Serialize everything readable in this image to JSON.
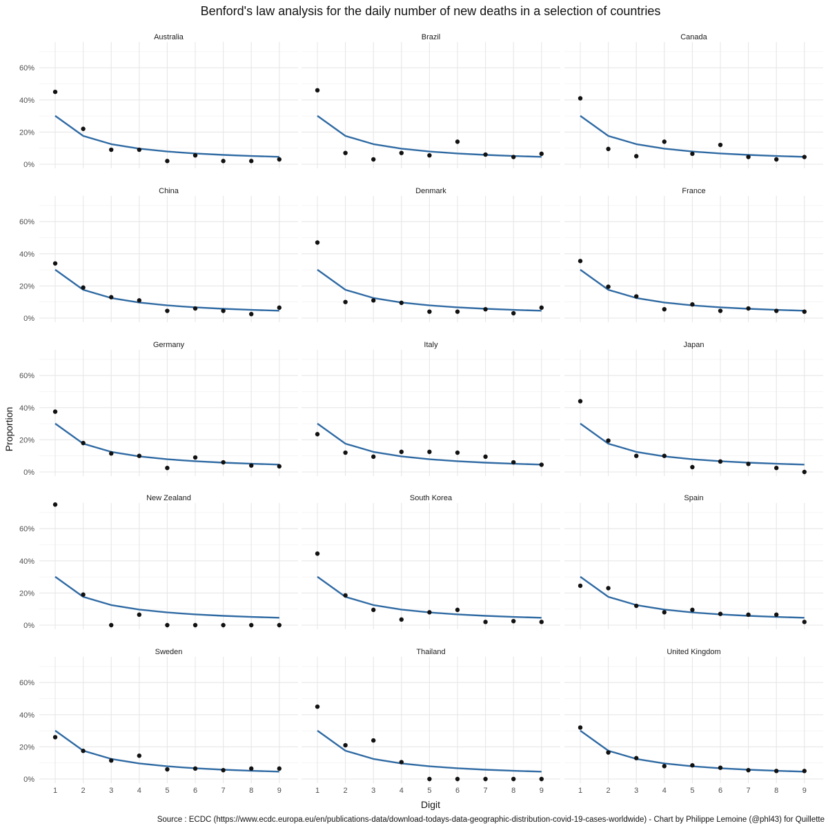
{
  "chart_data": {
    "type": "scatter",
    "title": "Benford's law analysis for the daily number of new deaths in a selection of countries",
    "xlabel": "Digit",
    "ylabel": "Proportion",
    "caption": "Source : ECDC (https://www.ecdc.europa.eu/en/publications-data/download-todays-data-geographic-distribution-covid-19-cases-worldwide) - Chart by Philippe Lemoine (@phl43) for Quillette",
    "x_ticks": [
      "1",
      "2",
      "3",
      "4",
      "5",
      "6",
      "7",
      "8",
      "9"
    ],
    "y_ticks": [
      "0%",
      "20%",
      "40%",
      "60%"
    ],
    "ylim": [
      0,
      0.76
    ],
    "grid": true,
    "benford_line": {
      "x": [
        1,
        2,
        3,
        4,
        5,
        6,
        7,
        8,
        9
      ],
      "y": [
        0.301,
        0.176,
        0.125,
        0.097,
        0.079,
        0.067,
        0.058,
        0.051,
        0.046
      ]
    },
    "panels": [
      {
        "country": "Australia",
        "values": [
          0.45,
          0.22,
          0.09,
          0.09,
          0.02,
          0.055,
          0.02,
          0.02,
          0.03
        ]
      },
      {
        "country": "Brazil",
        "values": [
          0.46,
          0.07,
          0.03,
          0.07,
          0.055,
          0.14,
          0.06,
          0.045,
          0.065
        ]
      },
      {
        "country": "Canada",
        "values": [
          0.41,
          0.095,
          0.05,
          0.14,
          0.065,
          0.12,
          0.045,
          0.03,
          0.045
        ]
      },
      {
        "country": "China",
        "values": [
          0.34,
          0.19,
          0.13,
          0.11,
          0.045,
          0.06,
          0.045,
          0.025,
          0.065
        ]
      },
      {
        "country": "Denmark",
        "values": [
          0.47,
          0.1,
          0.11,
          0.095,
          0.04,
          0.04,
          0.055,
          0.03,
          0.065
        ]
      },
      {
        "country": "France",
        "values": [
          0.355,
          0.195,
          0.135,
          0.055,
          0.085,
          0.045,
          0.06,
          0.045,
          0.04
        ]
      },
      {
        "country": "Germany",
        "values": [
          0.375,
          0.18,
          0.115,
          0.1,
          0.025,
          0.09,
          0.06,
          0.04,
          0.035
        ]
      },
      {
        "country": "Italy",
        "values": [
          0.235,
          0.12,
          0.095,
          0.125,
          0.125,
          0.12,
          0.095,
          0.06,
          0.045
        ]
      },
      {
        "country": "Japan",
        "values": [
          0.44,
          0.195,
          0.1,
          0.1,
          0.03,
          0.065,
          0.05,
          0.025,
          0.0
        ]
      },
      {
        "country": "New Zealand",
        "values": [
          0.75,
          0.19,
          0.0,
          0.065,
          0.0,
          0.0,
          0.0,
          0.0,
          0.0
        ]
      },
      {
        "country": "South Korea",
        "values": [
          0.445,
          0.185,
          0.095,
          0.035,
          0.08,
          0.095,
          0.02,
          0.025,
          0.02
        ]
      },
      {
        "country": "Spain",
        "values": [
          0.245,
          0.23,
          0.12,
          0.08,
          0.095,
          0.07,
          0.065,
          0.065,
          0.02
        ]
      },
      {
        "country": "Sweden",
        "values": [
          0.26,
          0.175,
          0.115,
          0.145,
          0.06,
          0.065,
          0.055,
          0.065,
          0.065
        ]
      },
      {
        "country": "Thailand",
        "values": [
          0.45,
          0.21,
          0.24,
          0.105,
          0.0,
          0.0,
          0.0,
          0.0,
          0.0
        ]
      },
      {
        "country": "United Kingdom",
        "values": [
          0.32,
          0.165,
          0.13,
          0.08,
          0.085,
          0.07,
          0.055,
          0.05,
          0.05
        ]
      }
    ]
  }
}
